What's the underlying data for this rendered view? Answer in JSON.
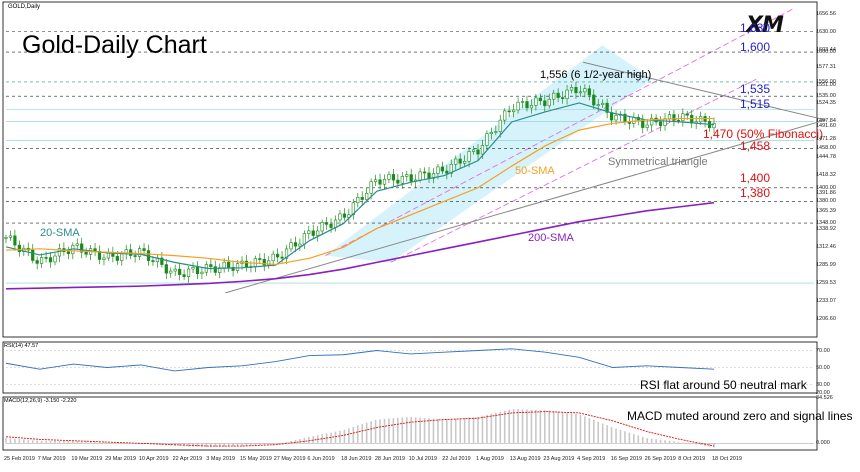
{
  "header": {
    "symbol": "GOLD,Daily",
    "chart_title": "Gold-Daily Chart",
    "logo": "XM"
  },
  "levels": {
    "l1630": "1,630",
    "l1600": "1,600",
    "l1556": "1,556 (6 1/2-year high)",
    "l1535": "1,535",
    "l1515": "1,515",
    "l1470": "1,470 (50% Fibonacci)",
    "l1458": "1,458",
    "l1400": "1,400",
    "l1380": "1,380"
  },
  "annotations": {
    "sma20": "20-SMA",
    "sma50": "50-SMA",
    "sma200": "200-SMA",
    "triangle": "Symmetrical triangle",
    "rsi_note": "RSI flat around 50 neutral mark",
    "macd_note": "MACD muted around zero and signal lines"
  },
  "rsi_header": "RSI(14) 47.57",
  "macd_header": "MACD(12,26,9) -3.150 -2.220",
  "colors": {
    "candle": "#1a8a1a",
    "sma20": "#2a8c8c",
    "sma50": "#f5a020",
    "sma200": "#8a1fbf",
    "channel_fill": "#d6f3fb",
    "channel_line": "#e070e0",
    "triangle": "#888888",
    "level_blue": "#1f1fd6",
    "level_red": "#e01010",
    "rsi": "#3070c0",
    "macd_hist": "#c8c8c8",
    "macd_signal": "#e01010"
  },
  "chart_data": [
    {
      "type": "line",
      "title": "Gold-Daily Chart",
      "x": [
        "25 Feb 2019",
        "7 Mar 2019",
        "19 Mar 2019",
        "29 Mar 2019",
        "10 Apr 2019",
        "22 Apr 2019",
        "3 May 2019",
        "15 May 2019",
        "27 May 2019",
        "6 Jun 2019",
        "18 Jun 2019",
        "28 Jun 2019",
        "10 Jul 2019",
        "22 Jul 2019",
        "1 Aug 2019",
        "13 Aug 2019",
        "23 Aug 2019",
        "4 Sep 2019",
        "16 Sep 2019",
        "26 Sep 2019",
        "8 Oct 2019",
        "18 Oct 2019"
      ],
      "y_ticks": [
        "1656.56",
        "1630.00",
        "1603.44",
        "1600.00",
        "1577.31",
        "1556.00",
        "1551.00",
        "1535.00",
        "1524.35",
        "1497.84",
        "1491.60",
        "1471.28",
        "1458.00",
        "1444.78",
        "1418.32",
        "1400.00",
        "1391.86",
        "1380.00",
        "1365.39",
        "1348.00",
        "1338.92",
        "1312.46",
        "1285.99",
        "1259.53",
        "1233.07",
        "1206.60"
      ],
      "ylim": [
        1180,
        1665
      ],
      "series": [
        {
          "name": "20-SMA",
          "values": [
            1313,
            1301,
            1310,
            1304,
            1302,
            1290,
            1281,
            1282,
            1286,
            1322,
            1347,
            1395,
            1408,
            1418,
            1440,
            1497,
            1512,
            1525,
            1510,
            1500,
            1497,
            1493
          ]
        },
        {
          "name": "50-SMA",
          "values": [
            1308,
            1310,
            1307,
            1305,
            1303,
            1300,
            1296,
            1290,
            1287,
            1296,
            1312,
            1340,
            1360,
            1380,
            1400,
            1432,
            1462,
            1485,
            1495,
            1500,
            1502,
            1502
          ]
        },
        {
          "name": "200-SMA",
          "values": [
            1251,
            1252,
            1253,
            1254,
            1255,
            1257,
            1259,
            1262,
            1266,
            1272,
            1280,
            1290,
            1300,
            1310,
            1320,
            1330,
            1340,
            1350,
            1358,
            1366,
            1372,
            1378
          ]
        }
      ],
      "price_close": [
        1327,
        1290,
        1313,
        1297,
        1306,
        1273,
        1281,
        1286,
        1296,
        1333,
        1357,
        1412,
        1414,
        1426,
        1456,
        1520,
        1528,
        1547,
        1505,
        1494,
        1505,
        1494
      ]
    },
    {
      "type": "line",
      "title": "RSI(14) 47.57",
      "ylim": [
        20,
        80
      ],
      "y_ticks": [
        "70.00",
        "50.00",
        "30.00",
        "20.00"
      ],
      "series": [
        {
          "name": "RSI(14)",
          "values": [
            55,
            48,
            54,
            50,
            53,
            46,
            50,
            52,
            57,
            64,
            65,
            70,
            66,
            68,
            70,
            72,
            68,
            62,
            50,
            52,
            50,
            48
          ]
        }
      ]
    },
    {
      "type": "bar",
      "title": "MACD(12,26,9) -3.150 -2.220",
      "ylim": [
        -5,
        35
      ],
      "y_ticks": [
        "34.526",
        "0.000"
      ],
      "series": [
        {
          "name": "MACD",
          "values": [
            4,
            2,
            2,
            1,
            0,
            -2,
            -3,
            -2,
            -1,
            5,
            10,
            18,
            20,
            18,
            20,
            26,
            25,
            22,
            12,
            4,
            1,
            -3
          ]
        },
        {
          "name": "Signal",
          "values": [
            5,
            3,
            2,
            1,
            0,
            -1,
            -2,
            -2,
            -1,
            2,
            6,
            12,
            16,
            18,
            19,
            23,
            24,
            23,
            17,
            9,
            3,
            -2
          ]
        }
      ]
    }
  ]
}
